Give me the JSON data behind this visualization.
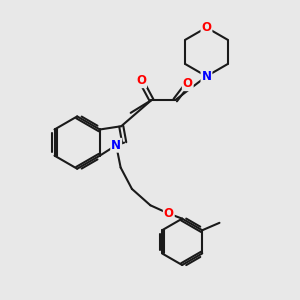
{
  "bg_color": "#e8e8e8",
  "bond_color": "#1a1a1a",
  "N_color": "#0000ff",
  "O_color": "#ff0000",
  "bond_width": 1.5,
  "figsize": [
    3.0,
    3.0
  ],
  "dpi": 100,
  "xlim": [
    0,
    10
  ],
  "ylim": [
    0,
    10
  ]
}
